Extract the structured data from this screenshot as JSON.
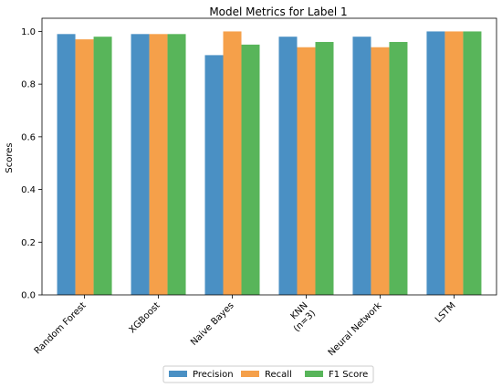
{
  "chart_data": {
    "type": "bar",
    "title": "Model Metrics for Label 1",
    "xlabel": "",
    "ylabel": "Scores",
    "ylim": [
      0,
      1.05
    ],
    "yticks": [
      "0.0",
      "0.2",
      "0.4",
      "0.6",
      "0.8",
      "1.0"
    ],
    "categories": [
      "Random Forest",
      "XGBoost",
      "Naive Bayes",
      "KNN\n(n=3)",
      "Neural Network",
      "LSTM"
    ],
    "series": [
      {
        "name": "Precision",
        "color": "#4a90c4",
        "values": [
          0.99,
          0.99,
          0.91,
          0.98,
          0.98,
          1.0
        ]
      },
      {
        "name": "Recall",
        "color": "#f5a04a",
        "values": [
          0.97,
          0.99,
          1.0,
          0.94,
          0.94,
          1.0
        ]
      },
      {
        "name": "F1 Score",
        "color": "#58b55a",
        "values": [
          0.98,
          0.99,
          0.95,
          0.96,
          0.96,
          1.0
        ]
      }
    ],
    "grid": false,
    "legend": "bottom-center"
  }
}
